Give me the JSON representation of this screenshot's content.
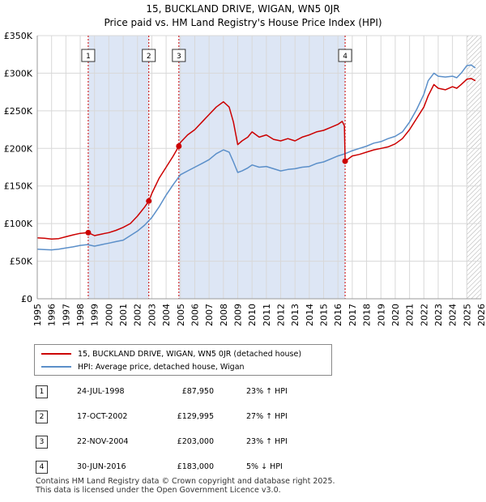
{
  "title": "15, BUCKLAND DRIVE, WIGAN, WN5 0JR",
  "subtitle": "Price paid vs. HM Land Registry's House Price Index (HPI)",
  "legend": {
    "red": "15, BUCKLAND DRIVE, WIGAN, WN5 0JR (detached house)",
    "blue": "HPI: Average price, detached house, Wigan"
  },
  "events": [
    {
      "num": "1",
      "date": "24-JUL-1998",
      "price": "£87,950",
      "hpi": "23% ↑ HPI"
    },
    {
      "num": "2",
      "date": "17-OCT-2002",
      "price": "£129,995",
      "hpi": "27% ↑ HPI"
    },
    {
      "num": "3",
      "date": "22-NOV-2004",
      "price": "£203,000",
      "hpi": "23% ↑ HPI"
    },
    {
      "num": "4",
      "date": "30-JUN-2016",
      "price": "£183,000",
      "hpi": "5% ↓ HPI"
    }
  ],
  "footer": {
    "line1": "Contains HM Land Registry data © Crown copyright and database right 2025.",
    "line2": "This data is licensed under the Open Government Licence v3.0."
  },
  "chart_data": {
    "type": "line",
    "title": "15, BUCKLAND DRIVE, WIGAN, WN5 0JR",
    "subtitle": "Price paid vs. HM Land Registry's House Price Index (HPI)",
    "xlabel": "",
    "ylabel": "",
    "xlim": [
      1995,
      2026
    ],
    "ylim": [
      0,
      350000
    ],
    "x_ticks": [
      1995,
      1996,
      1997,
      1998,
      1999,
      2000,
      2001,
      2002,
      2003,
      2004,
      2005,
      2006,
      2007,
      2008,
      2009,
      2010,
      2011,
      2012,
      2013,
      2014,
      2015,
      2016,
      2017,
      2018,
      2019,
      2020,
      2021,
      2022,
      2023,
      2024,
      2025,
      2026
    ],
    "y_ticks": [
      {
        "value": 0,
        "label": "£0"
      },
      {
        "value": 50000,
        "label": "£50K"
      },
      {
        "value": 100000,
        "label": "£100K"
      },
      {
        "value": 150000,
        "label": "£150K"
      },
      {
        "value": 200000,
        "label": "£200K"
      },
      {
        "value": 250000,
        "label": "£250K"
      },
      {
        "value": 300000,
        "label": "£300K"
      },
      {
        "value": 350000,
        "label": "£350K"
      }
    ],
    "shaded_periods": [
      [
        1998.56,
        2002.79
      ],
      [
        2004.89,
        2016.5
      ]
    ],
    "hatched_after": 2025.0,
    "colors": {
      "red": "#cc0000",
      "blue": "#5b8fc9",
      "shade": "#dde6f5",
      "grid": "#d8d8d8",
      "vline": "#cc0000"
    },
    "series": [
      {
        "name": "15, BUCKLAND DRIVE, WIGAN, WN5 0JR (detached house)",
        "color": "#cc0000",
        "x": [
          1995,
          1995.5,
          1996,
          1996.5,
          1997,
          1997.5,
          1998,
          1998.56,
          1999,
          1999.5,
          2000,
          2000.5,
          2001,
          2001.5,
          2002,
          2002.5,
          2002.79,
          2003,
          2003.5,
          2004,
          2004.5,
          2004.89,
          2005,
          2005.5,
          2006,
          2006.5,
          2007,
          2007.5,
          2008,
          2008.4,
          2008.7,
          2009,
          2009.3,
          2009.7,
          2010,
          2010.5,
          2011,
          2011.5,
          2012,
          2012.5,
          2013,
          2013.5,
          2014,
          2014.5,
          2015,
          2015.5,
          2016,
          2016.3,
          2016.45,
          2016.5,
          2017,
          2017.5,
          2018,
          2018.5,
          2019,
          2019.5,
          2020,
          2020.5,
          2021,
          2021.5,
          2022,
          2022.3,
          2022.7,
          2023,
          2023.5,
          2024,
          2024.3,
          2024.6,
          2025,
          2025.3,
          2025.6
        ],
        "y": [
          81000,
          80500,
          79500,
          80000,
          82500,
          85000,
          87000,
          87950,
          84000,
          86000,
          88000,
          91000,
          95000,
          100000,
          110000,
          122000,
          129995,
          140000,
          160000,
          175000,
          190000,
          203000,
          208000,
          218000,
          225000,
          235000,
          245000,
          255000,
          262000,
          255000,
          235000,
          205000,
          210000,
          215000,
          222000,
          215000,
          218000,
          212000,
          210000,
          213000,
          210000,
          215000,
          218000,
          222000,
          224000,
          228000,
          232000,
          236000,
          230000,
          183000,
          190000,
          192000,
          195000,
          198000,
          200000,
          202000,
          206000,
          213000,
          225000,
          240000,
          255000,
          270000,
          285000,
          280000,
          278000,
          282000,
          280000,
          285000,
          292000,
          293000,
          290000
        ]
      },
      {
        "name": "HPI: Average price, detached house, Wigan",
        "color": "#5b8fc9",
        "x": [
          1995,
          1995.5,
          1996,
          1996.5,
          1997,
          1997.5,
          1998,
          1998.5,
          1999,
          1999.5,
          2000,
          2000.5,
          2001,
          2001.5,
          2002,
          2002.5,
          2003,
          2003.5,
          2004,
          2004.5,
          2005,
          2005.5,
          2006,
          2006.5,
          2007,
          2007.5,
          2008,
          2008.4,
          2008.7,
          2009,
          2009.3,
          2009.7,
          2010,
          2010.5,
          2011,
          2011.5,
          2012,
          2012.5,
          2013,
          2013.5,
          2014,
          2014.5,
          2015,
          2015.5,
          2016,
          2016.5,
          2017,
          2017.5,
          2018,
          2018.5,
          2019,
          2019.5,
          2020,
          2020.5,
          2021,
          2021.5,
          2022,
          2022.3,
          2022.7,
          2023,
          2023.5,
          2024,
          2024.3,
          2024.6,
          2025,
          2025.3,
          2025.6
        ],
        "y": [
          66000,
          65500,
          65000,
          66000,
          67500,
          69000,
          71000,
          72000,
          70000,
          72000,
          74000,
          76000,
          78000,
          84000,
          90000,
          98000,
          108000,
          122000,
          138000,
          152000,
          165000,
          170000,
          175000,
          180000,
          185000,
          193000,
          198000,
          195000,
          182000,
          168000,
          170000,
          174000,
          178000,
          175000,
          176000,
          173000,
          170000,
          172000,
          173000,
          175000,
          176000,
          180000,
          182000,
          186000,
          190000,
          193000,
          197000,
          200000,
          203000,
          207000,
          209000,
          213000,
          216000,
          222000,
          235000,
          252000,
          272000,
          290000,
          300000,
          296000,
          295000,
          296000,
          294000,
          300000,
          310000,
          311000,
          307000
        ]
      }
    ],
    "markers": [
      {
        "label": "1",
        "x": 1998.56,
        "y": 87950
      },
      {
        "label": "2",
        "x": 2002.79,
        "y": 129995
      },
      {
        "label": "3",
        "x": 2004.89,
        "y": 203000
      },
      {
        "label": "4",
        "x": 2016.5,
        "y": 183000
      }
    ]
  }
}
